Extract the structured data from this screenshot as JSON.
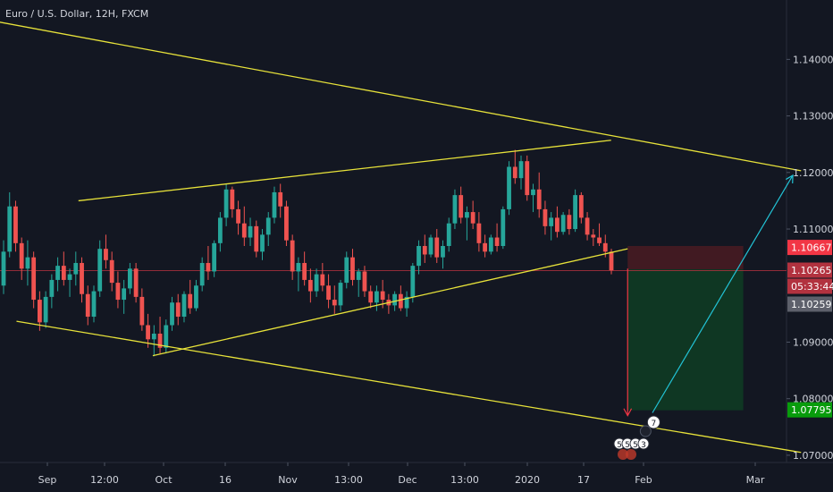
{
  "chart_data": {
    "type": "candlestick",
    "title": "Euro / U.S. Dollar, 12H, FXCM",
    "symbol": "EURUSD",
    "timeframe": "12H",
    "ylim": [
      1.0635,
      1.1505
    ],
    "y_ticks": [
      "1.14000",
      "1.13000",
      "1.12000",
      "1.11000",
      "1.09000",
      "1.08000",
      "1.07000"
    ],
    "x_ticks": [
      "Sep",
      "12:00",
      "Oct",
      "16",
      "Nov",
      "13:00",
      "Dec",
      "13:00",
      "2020",
      "17",
      "Feb",
      "Mar"
    ],
    "price_labels": {
      "entry": "1.10667",
      "current": "1.10265",
      "countdown": "05:33:44",
      "last": "1.10259",
      "target": "1.07795"
    },
    "candles": [
      [
        1.1,
        1.108,
        1.0985,
        1.106
      ],
      [
        1.106,
        1.1165,
        1.105,
        1.114
      ],
      [
        1.114,
        1.115,
        1.106,
        1.1075
      ],
      [
        1.1075,
        1.1085,
        1.101,
        1.103
      ],
      [
        1.103,
        1.108,
        1.1,
        1.105
      ],
      [
        1.105,
        1.106,
        1.096,
        1.0975
      ],
      [
        1.0975,
        1.099,
        1.092,
        1.0935
      ],
      [
        1.0935,
        1.099,
        1.0925,
        1.098
      ],
      [
        1.098,
        1.102,
        1.096,
        1.101
      ],
      [
        1.101,
        1.105,
        1.099,
        1.1035
      ],
      [
        1.1035,
        1.106,
        1.1,
        1.101
      ],
      [
        1.101,
        1.103,
        1.098,
        1.102
      ],
      [
        1.102,
        1.106,
        1.1,
        1.104
      ],
      [
        1.104,
        1.105,
        1.097,
        1.0985
      ],
      [
        1.0985,
        1.1,
        1.093,
        1.0945
      ],
      [
        1.0945,
        1.1,
        1.0935,
        1.099
      ],
      [
        1.099,
        1.108,
        1.098,
        1.1065
      ],
      [
        1.1065,
        1.109,
        1.103,
        1.1045
      ],
      [
        1.1045,
        1.106,
        1.099,
        1.1005
      ],
      [
        1.1005,
        1.1025,
        1.096,
        1.0975
      ],
      [
        1.0975,
        1.101,
        1.095,
        1.0995
      ],
      [
        1.0995,
        1.104,
        1.0985,
        1.103
      ],
      [
        1.103,
        1.104,
        1.097,
        1.098
      ],
      [
        1.098,
        1.0995,
        1.092,
        1.093
      ],
      [
        1.093,
        1.095,
        1.089,
        1.0905
      ],
      [
        1.0905,
        1.093,
        1.0875,
        1.0915
      ],
      [
        1.0915,
        1.0945,
        1.088,
        1.089
      ],
      [
        1.089,
        1.094,
        1.088,
        1.093
      ],
      [
        1.093,
        1.098,
        1.092,
        1.097
      ],
      [
        1.097,
        1.0985,
        1.093,
        1.0945
      ],
      [
        1.0945,
        1.099,
        1.0935,
        1.0985
      ],
      [
        1.0985,
        1.101,
        1.095,
        1.096
      ],
      [
        1.096,
        1.101,
        1.0955,
        1.1
      ],
      [
        1.1,
        1.105,
        1.099,
        1.104
      ],
      [
        1.104,
        1.107,
        1.101,
        1.1025
      ],
      [
        1.1025,
        1.108,
        1.1015,
        1.1075
      ],
      [
        1.1075,
        1.113,
        1.106,
        1.112
      ],
      [
        1.112,
        1.118,
        1.1105,
        1.117
      ],
      [
        1.117,
        1.1175,
        1.112,
        1.1135
      ],
      [
        1.1135,
        1.115,
        1.109,
        1.111
      ],
      [
        1.111,
        1.114,
        1.107,
        1.1085
      ],
      [
        1.1085,
        1.112,
        1.107,
        1.1105
      ],
      [
        1.1105,
        1.1115,
        1.105,
        1.106
      ],
      [
        1.106,
        1.11,
        1.1045,
        1.109
      ],
      [
        1.109,
        1.113,
        1.107,
        1.112
      ],
      [
        1.112,
        1.1175,
        1.111,
        1.1165
      ],
      [
        1.1165,
        1.118,
        1.112,
        1.114
      ],
      [
        1.114,
        1.115,
        1.107,
        1.108
      ],
      [
        1.108,
        1.109,
        1.101,
        1.1025
      ],
      [
        1.1025,
        1.105,
        1.099,
        1.104
      ],
      [
        1.104,
        1.106,
        1.1,
        1.101
      ],
      [
        1.101,
        1.103,
        1.097,
        1.099
      ],
      [
        1.099,
        1.103,
        1.098,
        1.102
      ],
      [
        1.102,
        1.104,
        1.099,
        1.1
      ],
      [
        1.1,
        1.102,
        1.096,
        1.0975
      ],
      [
        1.0975,
        1.1,
        1.095,
        1.0965
      ],
      [
        1.0965,
        1.101,
        1.0955,
        1.1005
      ],
      [
        1.1005,
        1.106,
        1.0995,
        1.105
      ],
      [
        1.105,
        1.1065,
        1.1,
        1.101
      ],
      [
        1.101,
        1.103,
        1.098,
        1.1025
      ],
      [
        1.1025,
        1.1035,
        1.098,
        1.099
      ],
      [
        1.099,
        1.1,
        1.096,
        1.097
      ],
      [
        1.097,
        1.1,
        1.0955,
        1.099
      ],
      [
        1.099,
        1.101,
        1.096,
        1.0975
      ],
      [
        1.0975,
        1.0985,
        1.095,
        1.0965
      ],
      [
        1.0965,
        1.099,
        1.0955,
        1.0985
      ],
      [
        1.0985,
        1.1,
        1.0955,
        1.096
      ],
      [
        1.096,
        1.099,
        1.0945,
        1.098
      ],
      [
        1.098,
        1.104,
        1.097,
        1.1035
      ],
      [
        1.1035,
        1.108,
        1.102,
        1.107
      ],
      [
        1.107,
        1.109,
        1.104,
        1.1055
      ],
      [
        1.1055,
        1.109,
        1.105,
        1.1085
      ],
      [
        1.1085,
        1.11,
        1.104,
        1.105
      ],
      [
        1.105,
        1.108,
        1.103,
        1.107
      ],
      [
        1.107,
        1.112,
        1.106,
        1.111
      ],
      [
        1.111,
        1.117,
        1.11,
        1.116
      ],
      [
        1.116,
        1.1175,
        1.111,
        1.112
      ],
      [
        1.112,
        1.114,
        1.108,
        1.113
      ],
      [
        1.113,
        1.115,
        1.11,
        1.111
      ],
      [
        1.111,
        1.113,
        1.106,
        1.1075
      ],
      [
        1.1075,
        1.109,
        1.105,
        1.106
      ],
      [
        1.106,
        1.109,
        1.1055,
        1.1085
      ],
      [
        1.1085,
        1.111,
        1.106,
        1.107
      ],
      [
        1.107,
        1.114,
        1.1065,
        1.1135
      ],
      [
        1.1135,
        1.122,
        1.1125,
        1.121
      ],
      [
        1.121,
        1.124,
        1.118,
        1.119
      ],
      [
        1.119,
        1.123,
        1.117,
        1.122
      ],
      [
        1.122,
        1.123,
        1.115,
        1.116
      ],
      [
        1.116,
        1.118,
        1.113,
        1.117
      ],
      [
        1.117,
        1.12,
        1.112,
        1.1135
      ],
      [
        1.1135,
        1.115,
        1.109,
        1.1105
      ],
      [
        1.1105,
        1.113,
        1.108,
        1.112
      ],
      [
        1.112,
        1.114,
        1.1085,
        1.1095
      ],
      [
        1.1095,
        1.113,
        1.109,
        1.1125
      ],
      [
        1.1125,
        1.1135,
        1.109,
        1.11
      ],
      [
        1.11,
        1.117,
        1.1095,
        1.116
      ],
      [
        1.116,
        1.1165,
        1.111,
        1.112
      ],
      [
        1.112,
        1.113,
        1.108,
        1.109
      ],
      [
        1.109,
        1.11,
        1.107,
        1.1085
      ],
      [
        1.1085,
        1.111,
        1.107,
        1.1075
      ],
      [
        1.1075,
        1.109,
        1.105,
        1.106
      ],
      [
        1.106,
        1.1065,
        1.102,
        1.1027
      ]
    ],
    "trendlines": [
      {
        "name": "channel-upper",
        "p1": [
          "2019-08-12",
          1.1482
        ],
        "p2": [
          "2020-03-05",
          1.1203
        ],
        "color": "#e7e23a"
      },
      {
        "name": "channel-lower",
        "p1": [
          "2019-08-28",
          1.0937
        ],
        "p2": [
          "2020-03-05",
          1.0705
        ],
        "color": "#e7e23a"
      },
      {
        "name": "wedge-upper",
        "p1": [
          "2019-09-12",
          1.115
        ],
        "p2": [
          "2020-01-19",
          1.1257
        ],
        "color": "#e7e23a"
      },
      {
        "name": "wedge-lower",
        "p1": [
          "2019-09-30",
          1.0876
        ],
        "p2": [
          "2020-01-23",
          1.1065
        ],
        "color": "#e7e23a"
      }
    ],
    "position": {
      "type": "short",
      "entry": 1.10667,
      "target": 1.07795,
      "stop": 1.107,
      "from": "2020-01-23",
      "to": "2020-02-20"
    },
    "projection_arrows": [
      {
        "name": "down-arrow",
        "from": [
          "2020-01-23",
          1.103
        ],
        "to": [
          "2020-01-23",
          1.077
        ],
        "color": "#f23645"
      },
      {
        "name": "up-arrow",
        "from": [
          "2020-01-29",
          1.0775
        ],
        "to": [
          "2020-03-03",
          1.1195
        ],
        "color": "#22c3d6"
      }
    ],
    "colors": {
      "background": "#131722",
      "bull": "#26a69a",
      "bear": "#ef5350",
      "trendline": "#e7e23a",
      "target_box": "#0f3b24",
      "stop_box": "#4a1b22",
      "up_arrow": "#22c3d6",
      "down_arrow": "#f23645",
      "axis_text": "#d1d4dc",
      "entry_label": "#f23645",
      "target_label": "#089c0c"
    },
    "event_markers": [
      {
        "label": "7",
        "date": "2020-01-28"
      },
      {
        "label": "5",
        "date": "2020-01-25"
      },
      {
        "label": "5",
        "date": "2020-01-26"
      },
      {
        "label": "5",
        "date": "2020-01-27"
      },
      {
        "label": "3",
        "date": "2020-01-29"
      }
    ],
    "grid": false
  }
}
